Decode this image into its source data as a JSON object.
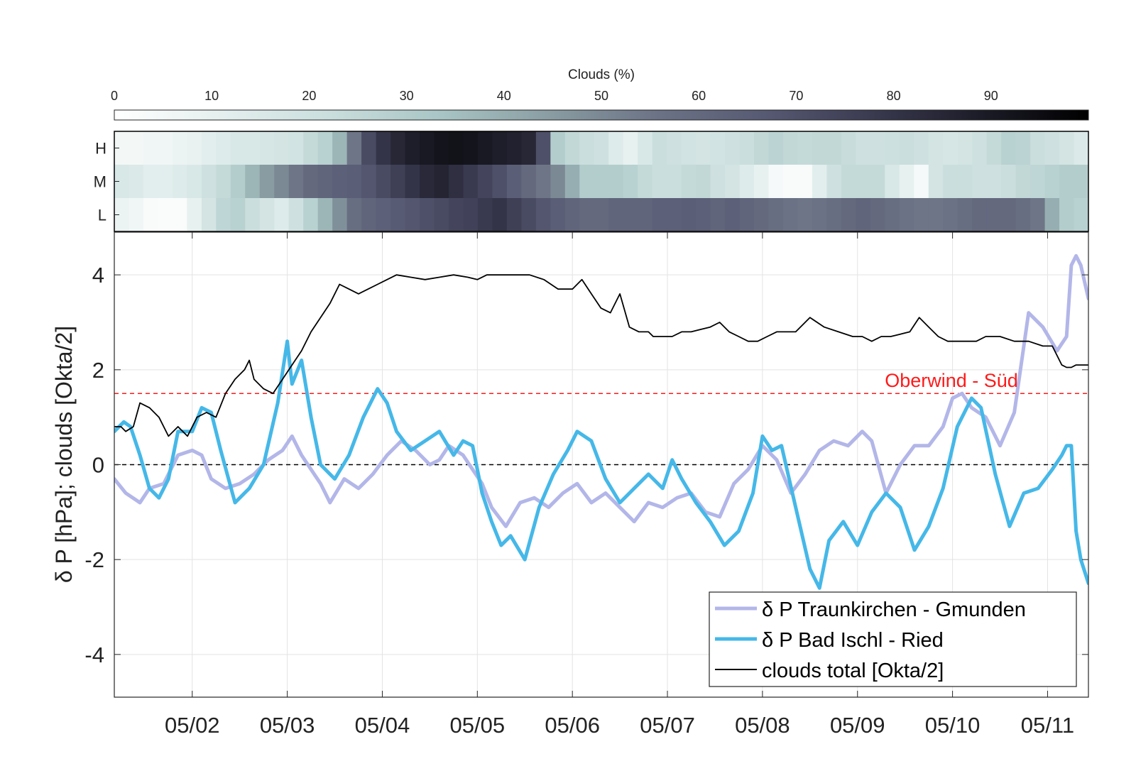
{
  "chart_data": [
    {
      "type": "colorbar",
      "title": "Clouds (%)",
      "range": [
        0,
        100
      ],
      "tick_labels": [
        "0",
        "10",
        "20",
        "30",
        "40",
        "50",
        "60",
        "70",
        "80",
        "90"
      ],
      "colors": [
        "#ffffff",
        "#e4efee",
        "#c9dedd",
        "#a9c5c5",
        "#8a9ea3",
        "#6c7386",
        "#575a73",
        "#3a3a50",
        "#1c1c28",
        "#000000"
      ]
    },
    {
      "type": "heatmap",
      "rows": [
        "H",
        "M",
        "L"
      ],
      "x_range": [
        1.18,
        11.43
      ],
      "values": [
        [
          5,
          5,
          6,
          6,
          8,
          9,
          12,
          14,
          16,
          16,
          17,
          18,
          19,
          24,
          28,
          38,
          55,
          72,
          80,
          85,
          88,
          90,
          92,
          93,
          92,
          90,
          88,
          87,
          85,
          70,
          30,
          25,
          22,
          20,
          14,
          10,
          16,
          22,
          20,
          19,
          18,
          19,
          20,
          22,
          25,
          27,
          25,
          24,
          25,
          25,
          23,
          20,
          20,
          21,
          22,
          20,
          18,
          17,
          18,
          20,
          24,
          28,
          27,
          22,
          20,
          18,
          15
        ],
        [
          16,
          15,
          12,
          12,
          14,
          16,
          20,
          24,
          30,
          38,
          45,
          50,
          55,
          60,
          62,
          64,
          65,
          68,
          72,
          76,
          80,
          84,
          86,
          82,
          78,
          74,
          70,
          65,
          60,
          55,
          50,
          40,
          30,
          30,
          30,
          28,
          24,
          22,
          22,
          24,
          25,
          20,
          18,
          14,
          10,
          4,
          3,
          3,
          12,
          20,
          24,
          24,
          24,
          16,
          10,
          4,
          18,
          22,
          22,
          20,
          20,
          22,
          25,
          26,
          28,
          30,
          30
        ],
        [
          8,
          6,
          3,
          2,
          2,
          10,
          18,
          26,
          28,
          22,
          18,
          14,
          20,
          28,
          38,
          48,
          58,
          62,
          64,
          66,
          68,
          70,
          72,
          74,
          75,
          78,
          80,
          76,
          72,
          68,
          65,
          62,
          60,
          60,
          62,
          62,
          62,
          64,
          64,
          65,
          64,
          62,
          64,
          62,
          60,
          58,
          56,
          55,
          56,
          58,
          60,
          62,
          60,
          58,
          56,
          55,
          55,
          56,
          58,
          60,
          60,
          60,
          58,
          55,
          40,
          30,
          28
        ]
      ]
    },
    {
      "type": "line",
      "xlabel": "",
      "ylabel": "δ P [hPa]; clouds [Okta/2]",
      "ylim": [
        -4.9,
        4.9
      ],
      "xlim": [
        1.18,
        11.43
      ],
      "x_ticks": [
        2,
        3,
        4,
        5,
        6,
        7,
        8,
        9,
        10,
        11
      ],
      "x_tick_labels": [
        "05/02",
        "05/03",
        "05/04",
        "05/05",
        "05/06",
        "05/07",
        "05/08",
        "05/09",
        "05/10",
        "05/11"
      ],
      "y_ticks": [
        4,
        2,
        0,
        -2,
        -4
      ],
      "y_tick_labels": [
        "4",
        "2",
        "0",
        "-2",
        "-4"
      ],
      "grid": true,
      "legend_position": "bottom-right",
      "reference_lines": [
        {
          "y": 1.5,
          "color": "#ff1a1a",
          "style": "dashed",
          "label": "Oberwind - Süd"
        },
        {
          "y": 0,
          "color": "#000000",
          "style": "dashed"
        }
      ],
      "series": [
        {
          "name": "δ P Traunkirchen - Gmunden",
          "color": "#b3b6e8",
          "x": [
            1.18,
            1.3,
            1.45,
            1.55,
            1.7,
            1.85,
            2.0,
            2.1,
            2.2,
            2.35,
            2.5,
            2.65,
            2.8,
            2.95,
            3.05,
            3.15,
            3.25,
            3.35,
            3.45,
            3.6,
            3.75,
            3.9,
            4.05,
            4.2,
            4.35,
            4.5,
            4.6,
            4.7,
            4.85,
            4.95,
            5.05,
            5.15,
            5.3,
            5.45,
            5.6,
            5.75,
            5.9,
            6.05,
            6.2,
            6.35,
            6.5,
            6.65,
            6.8,
            6.95,
            7.1,
            7.25,
            7.4,
            7.55,
            7.7,
            7.85,
            8.0,
            8.15,
            8.3,
            8.45,
            8.6,
            8.75,
            8.9,
            9.05,
            9.15,
            9.3,
            9.45,
            9.6,
            9.75,
            9.9,
            10.0,
            10.1,
            10.2,
            10.35,
            10.5,
            10.65,
            10.8,
            10.95,
            11.1,
            11.2,
            11.25,
            11.3,
            11.35,
            11.43
          ],
          "y": [
            -0.3,
            -0.6,
            -0.8,
            -0.5,
            -0.4,
            0.2,
            0.3,
            0.2,
            -0.3,
            -0.5,
            -0.4,
            -0.2,
            0.1,
            0.3,
            0.6,
            0.2,
            -0.1,
            -0.4,
            -0.8,
            -0.3,
            -0.5,
            -0.2,
            0.2,
            0.5,
            0.3,
            0.0,
            0.1,
            0.4,
            0.2,
            -0.1,
            -0.4,
            -0.9,
            -1.3,
            -0.8,
            -0.7,
            -0.9,
            -0.6,
            -0.4,
            -0.8,
            -0.6,
            -0.9,
            -1.2,
            -0.8,
            -0.9,
            -0.7,
            -0.6,
            -1.0,
            -1.1,
            -0.4,
            -0.1,
            0.4,
            0.1,
            -0.6,
            -0.2,
            0.3,
            0.5,
            0.4,
            0.7,
            0.5,
            -0.6,
            0.0,
            0.4,
            0.4,
            0.8,
            1.4,
            1.5,
            1.2,
            1.0,
            0.4,
            1.1,
            3.2,
            2.9,
            2.4,
            2.7,
            4.2,
            4.4,
            4.2,
            3.5
          ]
        },
        {
          "name": "δ P Bad Ischl - Ried",
          "color": "#45b8e8",
          "x": [
            1.18,
            1.28,
            1.35,
            1.45,
            1.55,
            1.65,
            1.75,
            1.85,
            2.0,
            2.1,
            2.2,
            2.3,
            2.45,
            2.6,
            2.75,
            2.9,
            3.0,
            3.05,
            3.15,
            3.25,
            3.35,
            3.5,
            3.65,
            3.8,
            3.95,
            4.05,
            4.15,
            4.3,
            4.45,
            4.6,
            4.75,
            4.85,
            4.95,
            5.05,
            5.15,
            5.25,
            5.35,
            5.5,
            5.65,
            5.8,
            5.95,
            6.05,
            6.2,
            6.35,
            6.5,
            6.65,
            6.8,
            6.95,
            7.05,
            7.15,
            7.3,
            7.45,
            7.6,
            7.75,
            7.9,
            8.0,
            8.1,
            8.2,
            8.35,
            8.5,
            8.6,
            8.7,
            8.85,
            9.0,
            9.15,
            9.3,
            9.45,
            9.6,
            9.75,
            9.9,
            10.05,
            10.2,
            10.3,
            10.45,
            10.6,
            10.75,
            10.9,
            11.05,
            11.15,
            11.2,
            11.25,
            11.3,
            11.35,
            11.43
          ],
          "y": [
            0.7,
            0.9,
            0.8,
            0.2,
            -0.5,
            -0.7,
            -0.3,
            0.7,
            0.7,
            1.2,
            1.1,
            0.3,
            -0.8,
            -0.5,
            0.0,
            1.3,
            2.6,
            1.7,
            2.2,
            1.0,
            0.0,
            -0.3,
            0.2,
            1.0,
            1.6,
            1.3,
            0.7,
            0.3,
            0.5,
            0.7,
            0.2,
            0.5,
            0.4,
            -0.6,
            -1.2,
            -1.7,
            -1.5,
            -2.0,
            -0.9,
            -0.2,
            0.3,
            0.7,
            0.5,
            -0.3,
            -0.8,
            -0.5,
            -0.2,
            -0.5,
            0.1,
            -0.3,
            -0.8,
            -1.2,
            -1.7,
            -1.4,
            -0.6,
            0.6,
            0.3,
            0.4,
            -0.9,
            -2.2,
            -2.6,
            -1.6,
            -1.2,
            -1.7,
            -1.0,
            -0.6,
            -0.9,
            -1.8,
            -1.3,
            -0.5,
            0.8,
            1.4,
            1.2,
            -0.2,
            -1.3,
            -0.6,
            -0.5,
            -0.1,
            0.2,
            0.4,
            0.4,
            -1.4,
            -2.0,
            -2.5
          ]
        },
        {
          "name": "clouds total [Okta/2]",
          "color": "#000000",
          "x": [
            1.18,
            1.25,
            1.3,
            1.38,
            1.45,
            1.55,
            1.65,
            1.75,
            1.85,
            1.95,
            2.05,
            2.15,
            2.25,
            2.35,
            2.45,
            2.55,
            2.6,
            2.65,
            2.75,
            2.85,
            2.95,
            3.05,
            3.15,
            3.25,
            3.35,
            3.45,
            3.55,
            3.65,
            3.75,
            3.85,
            3.95,
            4.05,
            4.15,
            4.3,
            4.45,
            4.6,
            4.75,
            4.9,
            5.0,
            5.1,
            5.25,
            5.4,
            5.55,
            5.7,
            5.85,
            6.0,
            6.1,
            6.2,
            6.3,
            6.4,
            6.5,
            6.6,
            6.7,
            6.8,
            6.85,
            6.95,
            7.05,
            7.15,
            7.25,
            7.35,
            7.45,
            7.55,
            7.65,
            7.75,
            7.85,
            7.95,
            8.05,
            8.15,
            8.25,
            8.35,
            8.5,
            8.65,
            8.8,
            8.95,
            9.05,
            9.15,
            9.25,
            9.35,
            9.45,
            9.55,
            9.65,
            9.75,
            9.85,
            9.95,
            10.05,
            10.15,
            10.25,
            10.35,
            10.5,
            10.65,
            10.8,
            10.95,
            11.05,
            11.15,
            11.2,
            11.25,
            11.3,
            11.35,
            11.43
          ],
          "y": [
            0.8,
            0.8,
            0.7,
            0.8,
            1.3,
            1.2,
            1.0,
            0.6,
            0.8,
            0.6,
            1.0,
            1.1,
            1.0,
            1.5,
            1.8,
            2.0,
            2.2,
            1.8,
            1.6,
            1.5,
            1.8,
            2.1,
            2.4,
            2.8,
            3.1,
            3.4,
            3.8,
            3.7,
            3.6,
            3.7,
            3.8,
            3.9,
            4.0,
            3.95,
            3.9,
            3.95,
            4.0,
            3.95,
            3.9,
            4.0,
            4.0,
            4.0,
            4.0,
            3.9,
            3.7,
            3.7,
            3.9,
            3.6,
            3.3,
            3.2,
            3.6,
            2.9,
            2.8,
            2.8,
            2.7,
            2.7,
            2.7,
            2.8,
            2.8,
            2.85,
            2.9,
            3.0,
            2.8,
            2.7,
            2.6,
            2.6,
            2.7,
            2.8,
            2.8,
            2.8,
            3.1,
            2.9,
            2.8,
            2.7,
            2.7,
            2.6,
            2.7,
            2.7,
            2.75,
            2.8,
            3.1,
            2.9,
            2.7,
            2.6,
            2.6,
            2.6,
            2.6,
            2.7,
            2.7,
            2.6,
            2.6,
            2.5,
            2.5,
            2.1,
            2.05,
            2.05,
            2.1,
            2.1,
            2.1
          ]
        }
      ]
    }
  ]
}
